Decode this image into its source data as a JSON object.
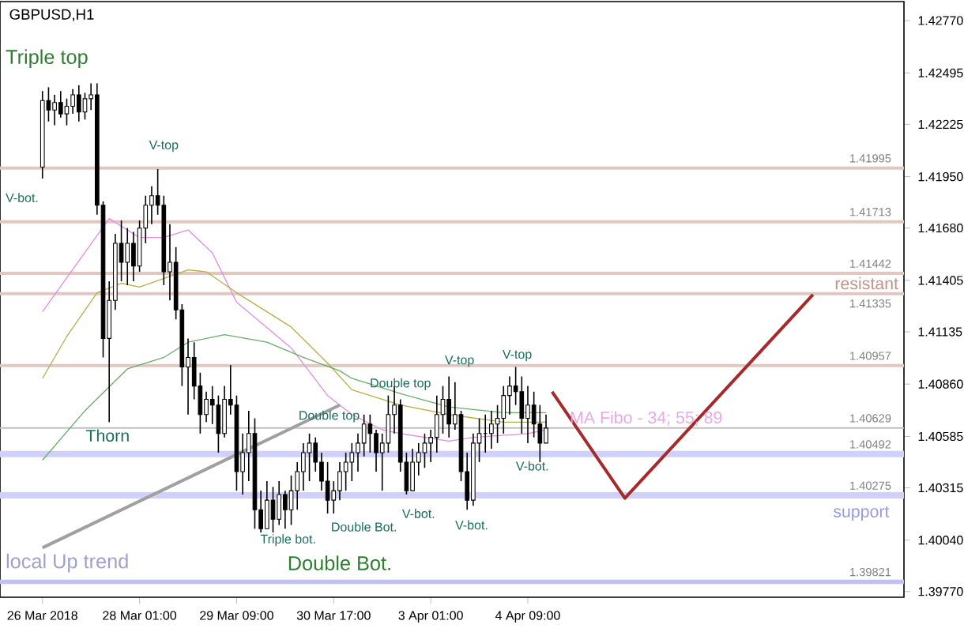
{
  "chart_data": {
    "type": "candlestick",
    "title": "GBPUSD,H1",
    "categories": [
      "26 Mar 2018",
      null,
      null,
      null,
      null,
      null,
      null,
      null,
      null,
      null,
      null,
      null,
      null,
      null,
      null,
      null,
      "28 Mar 01:00",
      null,
      null,
      null,
      null,
      null,
      null,
      null,
      null,
      null,
      null,
      null,
      null,
      null,
      null,
      null,
      "29 Mar 09:00",
      null,
      null,
      null,
      null,
      null,
      null,
      null,
      null,
      null,
      null,
      null,
      null,
      null,
      null,
      null,
      "30 Mar 17:00",
      null,
      null,
      null,
      null,
      null,
      null,
      null,
      null,
      null,
      null,
      null,
      null,
      null,
      null,
      null,
      "3 Apr 01:00",
      null,
      null,
      null,
      null,
      null,
      null,
      null,
      null,
      null,
      null,
      null,
      null,
      null,
      null,
      null,
      "4 Apr 09:00",
      null,
      null,
      null,
      null,
      null,
      null,
      null,
      null,
      null,
      null,
      null,
      null,
      null,
      null,
      null,
      null,
      null,
      null,
      null,
      null,
      null,
      null,
      null,
      null,
      null,
      null,
      null,
      null,
      null,
      null,
      null,
      null,
      null,
      null,
      null,
      null,
      null,
      null,
      null,
      null,
      null,
      null,
      null,
      null,
      null,
      null,
      null,
      null,
      null,
      null,
      null,
      null,
      null,
      null,
      null,
      null,
      null,
      null,
      null,
      null,
      null,
      null
    ],
    "ohlc": [
      [
        1.42,
        1.424,
        1.4194,
        1.4235
      ],
      [
        1.4235,
        1.4242,
        1.4224,
        1.423
      ],
      [
        1.423,
        1.4238,
        1.4222,
        1.4234
      ],
      [
        1.4234,
        1.424,
        1.4226,
        1.4228
      ],
      [
        1.4228,
        1.4236,
        1.4222,
        1.4232
      ],
      [
        1.4232,
        1.4241,
        1.4228,
        1.4238
      ],
      [
        1.4238,
        1.4243,
        1.4224,
        1.4229
      ],
      [
        1.4229,
        1.4239,
        1.4225,
        1.4236
      ],
      [
        1.4236,
        1.4244,
        1.423,
        1.4238
      ],
      [
        1.4238,
        1.4244,
        1.4175,
        1.418
      ],
      [
        1.418,
        1.4182,
        1.41,
        1.411
      ],
      [
        1.411,
        1.414,
        1.4066,
        1.413
      ],
      [
        1.413,
        1.4165,
        1.4125,
        1.416
      ],
      [
        1.416,
        1.4172,
        1.414,
        1.415
      ],
      [
        1.415,
        1.4168,
        1.4138,
        1.416
      ],
      [
        1.416,
        1.4166,
        1.414,
        1.4148
      ],
      [
        1.4148,
        1.4172,
        1.4145,
        1.4168
      ],
      [
        1.4168,
        1.4185,
        1.416,
        1.418
      ],
      [
        1.418,
        1.419,
        1.417,
        1.4185
      ],
      [
        1.4185,
        1.4199,
        1.4175,
        1.418
      ],
      [
        1.418,
        1.4185,
        1.4138,
        1.4145
      ],
      [
        1.4145,
        1.417,
        1.413,
        1.415
      ],
      [
        1.415,
        1.4158,
        1.412,
        1.4125
      ],
      [
        1.4125,
        1.4128,
        1.4085,
        1.4095
      ],
      [
        1.4095,
        1.411,
        1.407,
        1.41
      ],
      [
        1.41,
        1.4108,
        1.4078,
        1.4085
      ],
      [
        1.4085,
        1.4092,
        1.406,
        1.407
      ],
      [
        1.407,
        1.4082,
        1.4066,
        1.4078
      ],
      [
        1.4078,
        1.4085,
        1.4065,
        1.4075
      ],
      [
        1.4075,
        1.408,
        1.405,
        1.406
      ],
      [
        1.406,
        1.4085,
        1.4058,
        1.4078
      ],
      [
        1.4078,
        1.4096,
        1.407,
        1.4075
      ],
      [
        1.4075,
        1.408,
        1.403,
        1.404
      ],
      [
        1.404,
        1.406,
        1.4028,
        1.405
      ],
      [
        1.405,
        1.4072,
        1.4035,
        1.406
      ],
      [
        1.406,
        1.4068,
        1.401,
        1.402
      ],
      [
        1.402,
        1.403,
        1.4008,
        1.401
      ],
      [
        1.401,
        1.4035,
        1.401,
        1.4025
      ],
      [
        1.4025,
        1.4032,
        1.4008,
        1.4015
      ],
      [
        1.4015,
        1.4035,
        1.4012,
        1.4028
      ],
      [
        1.4028,
        1.403,
        1.401,
        1.402
      ],
      [
        1.402,
        1.4038,
        1.4012,
        1.403
      ],
      [
        1.403,
        1.4045,
        1.402,
        1.404
      ],
      [
        1.404,
        1.4055,
        1.403,
        1.405
      ],
      [
        1.405,
        1.406,
        1.4035,
        1.4055
      ],
      [
        1.4055,
        1.4058,
        1.404,
        1.4045
      ],
      [
        1.4045,
        1.405,
        1.403,
        1.4035
      ],
      [
        1.4035,
        1.4045,
        1.4018,
        1.4025
      ],
      [
        1.4025,
        1.4035,
        1.4018,
        1.403
      ],
      [
        1.403,
        1.4045,
        1.4025,
        1.404
      ],
      [
        1.404,
        1.405,
        1.403,
        1.4045
      ],
      [
        1.4045,
        1.4055,
        1.4035,
        1.405
      ],
      [
        1.405,
        1.406,
        1.404,
        1.4055
      ],
      [
        1.4055,
        1.407,
        1.4048,
        1.4065
      ],
      [
        1.4065,
        1.407,
        1.405,
        1.406
      ],
      [
        1.406,
        1.4062,
        1.404,
        1.405
      ],
      [
        1.405,
        1.406,
        1.403,
        1.4055
      ],
      [
        1.4055,
        1.408,
        1.405,
        1.407
      ],
      [
        1.407,
        1.4085,
        1.406,
        1.4075
      ],
      [
        1.4075,
        1.4078,
        1.404,
        1.4045
      ],
      [
        1.4045,
        1.405,
        1.4028,
        1.403
      ],
      [
        1.403,
        1.4052,
        1.403,
        1.4045
      ],
      [
        1.4045,
        1.4055,
        1.4038,
        1.405
      ],
      [
        1.405,
        1.406,
        1.4042,
        1.4055
      ],
      [
        1.4055,
        1.4062,
        1.4045,
        1.4058
      ],
      [
        1.4058,
        1.408,
        1.405,
        1.407
      ],
      [
        1.407,
        1.4085,
        1.406,
        1.4078
      ],
      [
        1.4078,
        1.409,
        1.4058,
        1.4065
      ],
      [
        1.4065,
        1.4087,
        1.4062,
        1.407
      ],
      [
        1.407,
        1.4072,
        1.4035,
        1.404
      ],
      [
        1.404,
        1.405,
        1.402,
        1.4025
      ],
      [
        1.4025,
        1.406,
        1.4022,
        1.4055
      ],
      [
        1.4055,
        1.4068,
        1.4045,
        1.406
      ],
      [
        1.406,
        1.407,
        1.405,
        1.406
      ],
      [
        1.406,
        1.4072,
        1.4052,
        1.4065
      ],
      [
        1.4065,
        1.4075,
        1.4055,
        1.4068
      ],
      [
        1.4068,
        1.4085,
        1.406,
        1.408
      ],
      [
        1.408,
        1.409,
        1.407,
        1.4085
      ],
      [
        1.4085,
        1.4095,
        1.4075,
        1.4082
      ],
      [
        1.4082,
        1.409,
        1.406,
        1.4068
      ],
      [
        1.4068,
        1.4085,
        1.4055,
        1.4075
      ],
      [
        1.4075,
        1.4082,
        1.4058,
        1.4065
      ],
      [
        1.4065,
        1.4075,
        1.4045,
        1.4055
      ],
      [
        1.4055,
        1.407,
        1.4055,
        1.40629
      ],
      null,
      null,
      null,
      null,
      null,
      null,
      null,
      null,
      null,
      null,
      null,
      null,
      null,
      null,
      null,
      null,
      null,
      null,
      null,
      null,
      null,
      null,
      null,
      null,
      null,
      null,
      null,
      null,
      null,
      null,
      null,
      null,
      null,
      null,
      null,
      null,
      null,
      null,
      null,
      null,
      null,
      null,
      null,
      null,
      null,
      null,
      null,
      null,
      null,
      null,
      null,
      null,
      null,
      null,
      null,
      null,
      null,
      null,
      null
    ],
    "series": [
      {
        "type": "line",
        "color": "#e28ee2",
        "values": [
          1.4124,
          null,
          null,
          null,
          null,
          null,
          null,
          null,
          null,
          null,
          null,
          1.4173,
          null,
          null,
          null,
          null,
          1.4163,
          null,
          null,
          null,
          1.4163,
          null,
          null,
          null,
          1.4167,
          null,
          null,
          null,
          1.4155,
          null,
          null,
          null,
          1.4129,
          null,
          null,
          null,
          null,
          null,
          null,
          null,
          null,
          1.4105,
          null,
          null,
          null,
          null,
          null,
          1.408,
          null,
          null,
          null,
          1.407,
          null,
          null,
          null,
          null,
          1.4062,
          null,
          null,
          1.406,
          null,
          null,
          null,
          null,
          null,
          null,
          null,
          1.4056,
          null,
          null,
          null,
          1.4058,
          null,
          null,
          null,
          null,
          null,
          null,
          null,
          null,
          1.406,
          null,
          null,
          1.4062,
          null,
          null,
          null,
          null,
          null,
          null,
          null,
          null,
          null,
          null,
          null,
          null,
          null,
          null,
          null,
          null,
          null,
          null,
          null,
          null,
          null,
          null,
          null,
          null,
          null,
          null,
          null,
          null,
          null,
          null,
          null,
          null,
          null,
          null,
          null,
          null,
          null,
          null,
          null,
          null,
          null,
          null,
          null,
          null,
          null,
          null,
          null,
          null,
          null,
          null,
          null,
          null,
          null,
          null,
          null,
          null,
          null,
          null,
          null
        ]
      },
      {
        "type": "line",
        "color": "#b5b04a",
        "values": [
          1.4089,
          null,
          null,
          null,
          1.4111,
          null,
          null,
          null,
          null,
          1.4134,
          null,
          null,
          null,
          1.4139,
          null,
          null,
          1.4137,
          null,
          null,
          null,
          null,
          null,
          null,
          null,
          1.4146,
          null,
          null,
          1.4145,
          null,
          null,
          null,
          null,
          1.4134,
          null,
          null,
          null,
          null,
          null,
          null,
          null,
          null,
          1.4116,
          null,
          null,
          null,
          null,
          null,
          1.4097,
          null,
          null,
          null,
          1.4083,
          null,
          null,
          null,
          null,
          null,
          null,
          null,
          1.4075,
          null,
          null,
          null,
          null,
          null,
          null,
          null,
          1.407,
          null,
          null,
          null,
          null,
          null,
          null,
          null,
          null,
          1.4066,
          null,
          null,
          null,
          null,
          null,
          null,
          1.4066,
          null,
          null,
          null,
          null,
          null,
          null,
          null,
          null,
          null,
          null,
          null,
          null,
          null,
          null,
          null,
          null,
          null,
          null,
          null,
          null,
          null,
          null,
          null,
          null,
          null,
          null,
          null,
          null,
          null,
          null,
          null,
          null,
          null,
          null,
          null,
          null,
          null,
          null,
          null,
          null,
          null,
          null,
          null,
          null,
          null,
          null,
          null,
          null,
          null,
          null,
          null,
          null,
          null,
          null,
          null,
          null,
          null,
          null,
          null
        ]
      },
      {
        "type": "line",
        "color": "#6aab6a",
        "values": [
          1.4046,
          null,
          null,
          null,
          null,
          null,
          null,
          1.4072,
          null,
          null,
          null,
          null,
          null,
          null,
          1.4094,
          null,
          null,
          null,
          null,
          null,
          1.41,
          null,
          null,
          null,
          1.4108,
          null,
          null,
          null,
          null,
          null,
          1.4112,
          null,
          null,
          null,
          null,
          null,
          null,
          1.4108,
          null,
          null,
          null,
          null,
          null,
          1.41,
          null,
          null,
          null,
          null,
          null,
          1.4093,
          null,
          1.4089,
          null,
          null,
          null,
          null,
          null,
          null,
          null,
          1.4081,
          null,
          null,
          null,
          null,
          null,
          null,
          null,
          1.4074,
          null,
          null,
          null,
          null,
          null,
          null,
          null,
          null,
          1.4071,
          null,
          null,
          null,
          null,
          null,
          null,
          1.4071,
          null,
          null,
          null,
          null,
          null,
          null,
          null,
          null,
          null,
          null,
          null,
          null,
          null,
          null,
          null,
          null,
          null,
          null,
          null,
          null,
          null,
          null,
          null,
          null,
          null,
          null,
          null,
          null,
          null,
          null,
          null,
          null,
          null,
          null,
          null,
          null,
          null,
          null,
          null,
          null,
          null,
          null,
          null,
          null,
          null,
          null,
          null,
          null,
          null,
          null,
          null,
          null,
          null,
          null,
          null,
          null,
          null,
          null,
          null
        ]
      },
      {
        "type": "line",
        "color": "#a0a0a0",
        "values": [
          1.4,
          null,
          null,
          null,
          null,
          null,
          null,
          null,
          null,
          null,
          null,
          null,
          null,
          null,
          null,
          null,
          null,
          null,
          null,
          null,
          null,
          null,
          null,
          null,
          null,
          null,
          null,
          null,
          null,
          null,
          null,
          null,
          null,
          null,
          null,
          null,
          null,
          null,
          null,
          null,
          null,
          null,
          null,
          null,
          null,
          null,
          null,
          null,
          null,
          1.4075,
          null,
          null,
          null,
          null,
          null,
          null,
          null,
          null,
          null,
          null,
          null,
          null,
          null,
          null,
          null,
          null,
          null,
          null,
          null,
          null,
          null,
          null,
          null,
          null,
          null,
          null,
          null,
          null,
          null,
          null,
          null,
          null,
          null,
          null,
          null,
          null,
          null,
          null,
          null,
          null,
          null,
          null,
          null,
          null,
          null,
          null,
          null,
          null,
          null,
          null,
          null,
          null,
          null,
          null,
          null,
          null,
          null,
          null,
          null,
          null,
          null,
          null,
          null,
          null,
          null,
          null,
          null,
          null,
          null,
          null,
          null,
          null,
          null,
          null,
          null,
          null,
          null,
          null,
          null,
          null,
          null,
          null,
          null,
          null,
          null,
          null,
          null,
          null,
          null,
          null,
          null,
          null,
          null
        ]
      },
      {
        "type": "line",
        "color": "#a52a2a",
        "values": [
          null,
          null,
          null,
          null,
          null,
          null,
          null,
          null,
          null,
          null,
          null,
          null,
          null,
          null,
          null,
          null,
          null,
          null,
          null,
          null,
          null,
          null,
          null,
          null,
          null,
          null,
          null,
          null,
          null,
          null,
          null,
          null,
          null,
          null,
          null,
          null,
          null,
          null,
          null,
          null,
          null,
          null,
          null,
          null,
          null,
          null,
          null,
          null,
          null,
          null,
          null,
          null,
          null,
          null,
          null,
          null,
          null,
          null,
          null,
          null,
          null,
          null,
          null,
          null,
          null,
          null,
          null,
          null,
          null,
          null,
          null,
          null,
          null,
          null,
          null,
          null,
          null,
          null,
          null,
          null,
          null,
          null,
          null,
          null,
          1.4082,
          null,
          null,
          null,
          null,
          null,
          null,
          null,
          null,
          null,
          null,
          null,
          1.4026,
          null,
          null,
          null,
          null,
          null,
          null,
          null,
          null,
          null,
          null,
          null,
          null,
          null,
          null,
          null,
          null,
          null,
          null,
          null,
          null,
          null,
          null,
          null,
          null,
          null,
          null,
          null,
          null,
          null,
          null,
          1.4133,
          null,
          null,
          null,
          null,
          null,
          null,
          null,
          null,
          null,
          null,
          null,
          null,
          null,
          null,
          null
        ]
      }
    ],
    "ylim": [
      1.3974,
      1.4287
    ],
    "yticks": [
      {
        "value": 1.4277,
        "label": "1.42770"
      },
      {
        "value": 1.42495,
        "label": "1.42495"
      },
      {
        "value": 1.42225,
        "label": "1.42225"
      },
      {
        "value": 1.4195,
        "label": "1.41950"
      },
      {
        "value": 1.4168,
        "label": "1.41680"
      },
      {
        "value": 1.41405,
        "label": "1.41405"
      },
      {
        "value": 1.41135,
        "label": "1.41135"
      },
      {
        "value": 1.4086,
        "label": "1.40860"
      },
      {
        "value": 1.40585,
        "label": "1.40585"
      },
      {
        "value": 1.40315,
        "label": "1.40315"
      },
      {
        "value": 1.4004,
        "label": "1.40040"
      },
      {
        "value": 1.3977,
        "label": "1.39770"
      }
    ],
    "ref_lines": [
      {
        "axis": "y",
        "value": 1.41995,
        "label": "1.41995",
        "color": "#e0c8c0"
      },
      {
        "axis": "y",
        "value": 1.41713,
        "label": "1.41713",
        "color": "#e0c8c0"
      },
      {
        "axis": "y",
        "value": 1.41442,
        "label": "1.41442",
        "color": "#e0c8c0"
      },
      {
        "axis": "y",
        "value": 1.41335,
        "label": "1.41335",
        "color": "#e0c8c0"
      },
      {
        "axis": "y",
        "value": 1.40957,
        "label": "1.40957",
        "color": "#e0c8c0"
      },
      {
        "axis": "y",
        "value": 1.40629,
        "label": "1.40629",
        "color": "#c0c0c0"
      },
      {
        "axis": "y",
        "value": 1.40492,
        "label": "1.40492",
        "color": "#d0d0fa"
      },
      {
        "axis": "y",
        "value": 1.40275,
        "label": "1.40275",
        "color": "#d0d0fa"
      },
      {
        "axis": "y",
        "value": 1.39821,
        "label": "1.39821",
        "color": "#c0c0f4"
      }
    ],
    "annotations": [
      "Triple top",
      "V-bot.",
      "V-top",
      "Thorn",
      "Double top",
      "Double top",
      "V-top",
      "V-top",
      "Triple bot.",
      "Double Bot.",
      "V-bot.",
      "V-bot.",
      "V-bot.",
      "Double Bot.",
      "local  Up trend",
      "MA Fibo - 34; 55; 89",
      "resistant",
      "support"
    ]
  }
}
